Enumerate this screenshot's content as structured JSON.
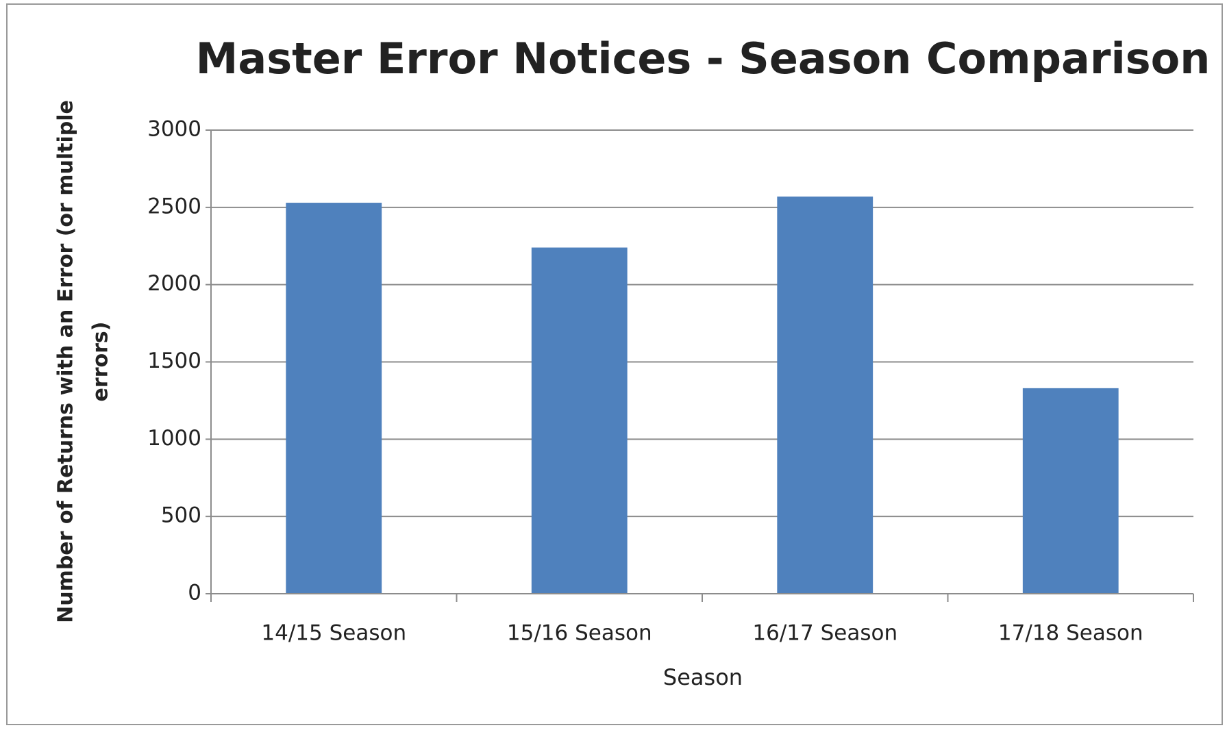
{
  "chart_data": {
    "type": "bar",
    "title": "Master Error Notices - Season Comparison",
    "x_label": "Season",
    "y_label": [
      "Number of Returns with an Error (or multiple",
      "errors)"
    ],
    "categories": [
      "14/15 Season",
      "15/16 Season",
      "16/17 Season",
      "17/18 Season"
    ],
    "values": [
      2530,
      2240,
      2570,
      1330
    ],
    "color": "#4f81bd",
    "ylim": [
      0,
      3000
    ],
    "yticks": [
      0,
      500,
      1000,
      1500,
      2000,
      2500,
      3000
    ],
    "grid": true
  }
}
